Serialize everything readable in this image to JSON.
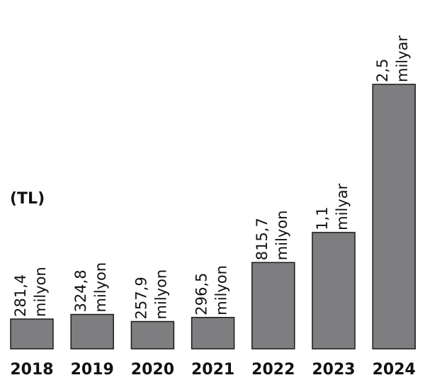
{
  "unit_label": "(TL)",
  "chart_data": {
    "type": "bar",
    "categories": [
      "2018",
      "2019",
      "2020",
      "2021",
      "2022",
      "2023",
      "2024"
    ],
    "values": [
      281.4,
      324.8,
      257.9,
      296.5,
      815.7,
      1100,
      2500
    ],
    "value_labels": [
      {
        "number": "281,4",
        "unit": "milyon"
      },
      {
        "number": "324,8",
        "unit": "milyon"
      },
      {
        "number": "257,9",
        "unit": "milyon"
      },
      {
        "number": "296,5",
        "unit": "milyon"
      },
      {
        "number": "815,7",
        "unit": "milyon"
      },
      {
        "number": "1,1",
        "unit": "milyar"
      },
      {
        "number": "2,5",
        "unit": "milyar"
      }
    ],
    "value_unit": "milyon TL",
    "title": "",
    "xlabel": "",
    "ylabel": "(TL)",
    "grid": false,
    "legend": "none",
    "bar_color": "#7e7e80",
    "edge_color": "#1a1a1a",
    "text_color": "#111111"
  }
}
